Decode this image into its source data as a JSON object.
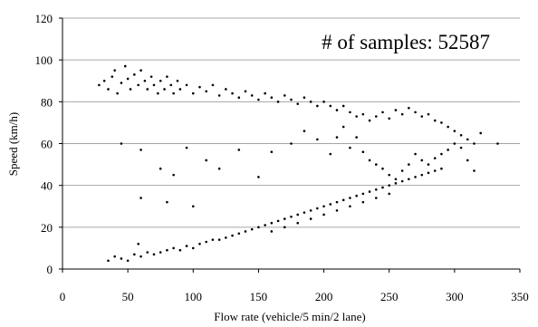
{
  "chart_data": {
    "type": "scatter",
    "title": "",
    "annotation": "# of samples: 52587",
    "xlabel": "Flow rate (vehicle/5 min/2 lane)",
    "ylabel": "Speed (km/h)",
    "xlim": [
      0,
      350
    ],
    "ylim": [
      0,
      120
    ],
    "xticks": [
      "0",
      "50",
      "100",
      "150",
      "200",
      "250",
      "300",
      "350"
    ],
    "yticks": [
      "0",
      "20",
      "40",
      "60",
      "80",
      "100",
      "120"
    ],
    "grid": "horizontal",
    "legend": "none",
    "marker_color": "#000000",
    "grid_color": "#a6a6a6",
    "series": [
      {
        "points": [
          [
            28,
            88
          ],
          [
            32,
            90
          ],
          [
            35,
            86
          ],
          [
            38,
            92
          ],
          [
            40,
            95
          ],
          [
            42,
            84
          ],
          [
            45,
            89
          ],
          [
            48,
            97
          ],
          [
            50,
            91
          ],
          [
            52,
            86
          ],
          [
            55,
            93
          ],
          [
            58,
            88
          ],
          [
            60,
            95
          ],
          [
            63,
            90
          ],
          [
            65,
            86
          ],
          [
            68,
            92
          ],
          [
            70,
            88
          ],
          [
            73,
            84
          ],
          [
            75,
            90
          ],
          [
            78,
            86
          ],
          [
            80,
            92
          ],
          [
            83,
            88
          ],
          [
            85,
            84
          ],
          [
            88,
            90
          ],
          [
            90,
            86
          ],
          [
            95,
            88
          ],
          [
            100,
            84
          ],
          [
            105,
            87
          ],
          [
            110,
            85
          ],
          [
            115,
            88
          ],
          [
            120,
            83
          ],
          [
            125,
            86
          ],
          [
            130,
            84
          ],
          [
            135,
            82
          ],
          [
            140,
            85
          ],
          [
            145,
            83
          ],
          [
            150,
            81
          ],
          [
            155,
            84
          ],
          [
            160,
            82
          ],
          [
            165,
            80
          ],
          [
            170,
            83
          ],
          [
            175,
            81
          ],
          [
            180,
            79
          ],
          [
            185,
            82
          ],
          [
            190,
            80
          ],
          [
            195,
            78
          ],
          [
            200,
            80
          ],
          [
            205,
            78
          ],
          [
            210,
            76
          ],
          [
            215,
            78
          ],
          [
            220,
            75
          ],
          [
            225,
            73
          ],
          [
            230,
            74
          ],
          [
            235,
            71
          ],
          [
            240,
            73
          ],
          [
            245,
            75
          ],
          [
            250,
            72
          ],
          [
            255,
            76
          ],
          [
            260,
            74
          ],
          [
            265,
            77
          ],
          [
            270,
            75
          ],
          [
            275,
            73
          ],
          [
            280,
            74
          ],
          [
            285,
            71
          ],
          [
            290,
            70
          ],
          [
            295,
            68
          ],
          [
            300,
            66
          ],
          [
            305,
            64
          ],
          [
            310,
            62
          ],
          [
            315,
            60
          ],
          [
            320,
            65
          ],
          [
            333,
            60
          ],
          [
            45,
            60
          ],
          [
            60,
            57
          ],
          [
            75,
            48
          ],
          [
            85,
            45
          ],
          [
            95,
            58
          ],
          [
            110,
            52
          ],
          [
            120,
            48
          ],
          [
            135,
            57
          ],
          [
            150,
            44
          ],
          [
            160,
            56
          ],
          [
            175,
            60
          ],
          [
            185,
            66
          ],
          [
            195,
            62
          ],
          [
            205,
            55
          ],
          [
            210,
            63
          ],
          [
            215,
            68
          ],
          [
            220,
            58
          ],
          [
            225,
            63
          ],
          [
            230,
            56
          ],
          [
            235,
            52
          ],
          [
            240,
            50
          ],
          [
            245,
            48
          ],
          [
            250,
            45
          ],
          [
            255,
            43
          ],
          [
            260,
            47
          ],
          [
            265,
            50
          ],
          [
            270,
            55
          ],
          [
            275,
            52
          ],
          [
            280,
            50
          ],
          [
            285,
            53
          ],
          [
            290,
            55
          ],
          [
            295,
            57
          ],
          [
            300,
            60
          ],
          [
            305,
            58
          ],
          [
            310,
            52
          ],
          [
            315,
            47
          ],
          [
            60,
            34
          ],
          [
            80,
            32
          ],
          [
            100,
            30
          ],
          [
            35,
            4
          ],
          [
            40,
            6
          ],
          [
            45,
            5
          ],
          [
            50,
            4
          ],
          [
            55,
            7
          ],
          [
            58,
            12
          ],
          [
            60,
            6
          ],
          [
            65,
            8
          ],
          [
            70,
            7
          ],
          [
            75,
            8
          ],
          [
            80,
            9
          ],
          [
            85,
            10
          ],
          [
            90,
            9
          ],
          [
            95,
            11
          ],
          [
            100,
            10
          ],
          [
            105,
            12
          ],
          [
            110,
            13
          ],
          [
            115,
            14
          ],
          [
            120,
            14
          ],
          [
            125,
            15
          ],
          [
            130,
            16
          ],
          [
            135,
            17
          ],
          [
            140,
            18
          ],
          [
            145,
            19
          ],
          [
            150,
            20
          ],
          [
            155,
            21
          ],
          [
            160,
            22
          ],
          [
            165,
            23
          ],
          [
            170,
            24
          ],
          [
            175,
            25
          ],
          [
            180,
            26
          ],
          [
            185,
            27
          ],
          [
            190,
            28
          ],
          [
            195,
            29
          ],
          [
            200,
            30
          ],
          [
            205,
            31
          ],
          [
            210,
            32
          ],
          [
            215,
            33
          ],
          [
            220,
            34
          ],
          [
            225,
            35
          ],
          [
            230,
            36
          ],
          [
            235,
            37
          ],
          [
            240,
            38
          ],
          [
            245,
            39
          ],
          [
            250,
            40
          ],
          [
            255,
            41
          ],
          [
            260,
            42
          ],
          [
            265,
            43
          ],
          [
            270,
            44
          ],
          [
            275,
            45
          ],
          [
            280,
            46
          ],
          [
            285,
            47
          ],
          [
            290,
            48
          ],
          [
            210,
            28
          ],
          [
            220,
            30
          ],
          [
            230,
            32
          ],
          [
            240,
            34
          ],
          [
            250,
            36
          ],
          [
            200,
            26
          ],
          [
            190,
            24
          ],
          [
            180,
            22
          ],
          [
            170,
            20
          ],
          [
            160,
            18
          ]
        ]
      }
    ]
  }
}
